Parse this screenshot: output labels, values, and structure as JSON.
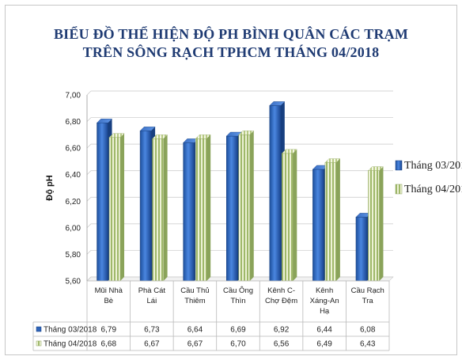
{
  "chart_data": {
    "type": "bar",
    "title": "BIỂU ĐỒ THỂ HIỆN ĐỘ PH BÌNH QUÂN CÁC TRẠM",
    "subtitle": "TRÊN SÔNG RẠCH TPHCM THÁNG 04/2018",
    "ylabel": "Độ pH",
    "xlabel": "",
    "ylim": [
      5.6,
      7.0
    ],
    "yticks": [
      "5,60",
      "5,80",
      "6,00",
      "6,20",
      "6,40",
      "6,60",
      "6,80",
      "7,00"
    ],
    "ytick_values": [
      5.6,
      5.8,
      6.0,
      6.2,
      6.4,
      6.6,
      6.8,
      7.0
    ],
    "grid": true,
    "legend_position": "right",
    "categories": [
      [
        "Mũi Nhà",
        "Bè"
      ],
      [
        "Phà Cát",
        "Lái"
      ],
      [
        "Cầu Thủ",
        "Thiêm"
      ],
      [
        "Cầu Ông",
        "Thìn"
      ],
      [
        "Kênh C-",
        "Chợ Đệm"
      ],
      [
        "Kênh",
        "Xáng-An",
        "Hạ"
      ],
      [
        "Cầu Rạch",
        "Tra"
      ]
    ],
    "series": [
      {
        "name": "Tháng 03/2018",
        "color": "#2f64b8",
        "values": [
          6.79,
          6.73,
          6.64,
          6.69,
          6.92,
          6.44,
          6.08
        ],
        "labels": [
          "6,79",
          "6,73",
          "6,64",
          "6,69",
          "6,92",
          "6,44",
          "6,08"
        ]
      },
      {
        "name": "Tháng 04/2018",
        "color": "#c8d79a",
        "values": [
          6.68,
          6.67,
          6.67,
          6.7,
          6.56,
          6.49,
          6.43
        ],
        "labels": [
          "6,68",
          "6,67",
          "6,67",
          "6,70",
          "6,56",
          "6,49",
          "6,43"
        ]
      }
    ]
  }
}
